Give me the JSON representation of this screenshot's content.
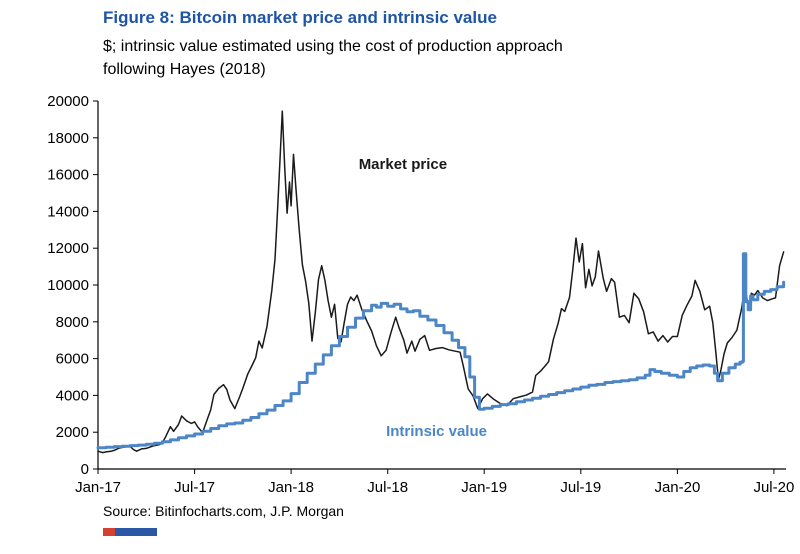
{
  "figure": {
    "title": "Figure 8: Bitcoin market price and intrinsic value",
    "subtitle": "$; intrinsic value estimated using the cost of production approach following Hayes (2018)",
    "source": "Source: Bitinfocharts.com, J.P. Morgan"
  },
  "colors": {
    "title_blue": "#1f55a5",
    "market": "#1a1a1a",
    "intrinsic": "#4d86c6",
    "axis": "#000000",
    "brand_red": "#d6402f",
    "brand_blue": "#2b57a7"
  },
  "chart_data": {
    "type": "line",
    "title": "Figure 8: Bitcoin market price and intrinsic value",
    "ylabel": "$",
    "xlabel": "",
    "grid": false,
    "legend_position": "inline-annotations",
    "xlim": [
      0,
      42.75
    ],
    "ylim": [
      0,
      20000
    ],
    "x_unit": "months since Jan-2017",
    "y_ticks": [
      0,
      2000,
      4000,
      6000,
      8000,
      10000,
      12000,
      14000,
      16000,
      18000,
      20000
    ],
    "x_ticks": [
      {
        "m": 0,
        "label": "Jan-17"
      },
      {
        "m": 6,
        "label": "Jul-17"
      },
      {
        "m": 12,
        "label": "Jan-18"
      },
      {
        "m": 18,
        "label": "Jul-18"
      },
      {
        "m": 24,
        "label": "Jan-19"
      },
      {
        "m": 30,
        "label": "Jul-19"
      },
      {
        "m": 36,
        "label": "Jan-20"
      },
      {
        "m": 42,
        "label": "Jul-20"
      }
    ],
    "annotations": [
      {
        "text": "Market price",
        "x": 16.2,
        "y": 16300,
        "color": "#1a1a1a"
      },
      {
        "text": "Intrinsic value",
        "x": 17.9,
        "y": 1800,
        "color": "#4d86c6"
      }
    ],
    "series": [
      {
        "name": "Market price",
        "color": "#1a1a1a",
        "width": 1.5,
        "step": false,
        "points": [
          [
            0,
            970
          ],
          [
            0.3,
            890
          ],
          [
            0.5,
            930
          ],
          [
            0.8,
            960
          ],
          [
            1,
            1010
          ],
          [
            1.3,
            1130
          ],
          [
            1.6,
            1190
          ],
          [
            2,
            1230
          ],
          [
            2.2,
            1060
          ],
          [
            2.4,
            970
          ],
          [
            2.7,
            1090
          ],
          [
            3,
            1120
          ],
          [
            3.4,
            1250
          ],
          [
            3.8,
            1320
          ],
          [
            4,
            1420
          ],
          [
            4.2,
            1750
          ],
          [
            4.5,
            2300
          ],
          [
            4.7,
            2050
          ],
          [
            5,
            2420
          ],
          [
            5.2,
            2880
          ],
          [
            5.5,
            2620
          ],
          [
            5.8,
            2480
          ],
          [
            6,
            2560
          ],
          [
            6.2,
            2280
          ],
          [
            6.5,
            1980
          ],
          [
            6.8,
            2720
          ],
          [
            7,
            3210
          ],
          [
            7.2,
            4050
          ],
          [
            7.5,
            4380
          ],
          [
            7.8,
            4580
          ],
          [
            8,
            4330
          ],
          [
            8.2,
            3750
          ],
          [
            8.5,
            3280
          ],
          [
            8.8,
            3920
          ],
          [
            9,
            4380
          ],
          [
            9.3,
            5150
          ],
          [
            9.6,
            5680
          ],
          [
            9.8,
            6050
          ],
          [
            10,
            6950
          ],
          [
            10.2,
            6580
          ],
          [
            10.5,
            7750
          ],
          [
            10.8,
            9700
          ],
          [
            11,
            11400
          ],
          [
            11.15,
            13900
          ],
          [
            11.3,
            16700
          ],
          [
            11.45,
            19450
          ],
          [
            11.6,
            16400
          ],
          [
            11.75,
            13900
          ],
          [
            11.9,
            15600
          ],
          [
            12,
            14300
          ],
          [
            12.15,
            17100
          ],
          [
            12.3,
            15200
          ],
          [
            12.5,
            13000
          ],
          [
            12.7,
            11100
          ],
          [
            12.9,
            10200
          ],
          [
            13.1,
            9000
          ],
          [
            13.3,
            6950
          ],
          [
            13.5,
            8500
          ],
          [
            13.7,
            10300
          ],
          [
            13.9,
            11050
          ],
          [
            14.1,
            10250
          ],
          [
            14.3,
            9150
          ],
          [
            14.5,
            8250
          ],
          [
            14.7,
            8950
          ],
          [
            14.9,
            7100
          ],
          [
            15.1,
            6900
          ],
          [
            15.3,
            7950
          ],
          [
            15.5,
            8950
          ],
          [
            15.7,
            9350
          ],
          [
            15.9,
            9150
          ],
          [
            16.1,
            9450
          ],
          [
            16.4,
            8650
          ],
          [
            16.7,
            8050
          ],
          [
            17,
            7500
          ],
          [
            17.3,
            6700
          ],
          [
            17.6,
            6150
          ],
          [
            17.9,
            6450
          ],
          [
            18.2,
            7400
          ],
          [
            18.5,
            8250
          ],
          [
            18.7,
            7700
          ],
          [
            19,
            7000
          ],
          [
            19.2,
            6300
          ],
          [
            19.5,
            6950
          ],
          [
            19.7,
            6400
          ],
          [
            20,
            7050
          ],
          [
            20.3,
            7250
          ],
          [
            20.6,
            6450
          ],
          [
            21,
            6550
          ],
          [
            21.4,
            6600
          ],
          [
            21.8,
            6480
          ],
          [
            22.2,
            6400
          ],
          [
            22.5,
            6350
          ],
          [
            22.7,
            5600
          ],
          [
            23,
            4350
          ],
          [
            23.3,
            3980
          ],
          [
            23.6,
            3280
          ],
          [
            23.9,
            3820
          ],
          [
            24.2,
            4080
          ],
          [
            24.6,
            3780
          ],
          [
            25,
            3560
          ],
          [
            25.4,
            3440
          ],
          [
            25.8,
            3820
          ],
          [
            26.2,
            3920
          ],
          [
            26.6,
            4010
          ],
          [
            27,
            4180
          ],
          [
            27.2,
            5080
          ],
          [
            27.5,
            5320
          ],
          [
            27.8,
            5620
          ],
          [
            28,
            5830
          ],
          [
            28.3,
            7050
          ],
          [
            28.6,
            7950
          ],
          [
            28.8,
            8720
          ],
          [
            29,
            8560
          ],
          [
            29.3,
            9320
          ],
          [
            29.5,
            10850
          ],
          [
            29.7,
            12550
          ],
          [
            29.9,
            11250
          ],
          [
            30.1,
            12250
          ],
          [
            30.3,
            9850
          ],
          [
            30.5,
            10850
          ],
          [
            30.7,
            9950
          ],
          [
            30.9,
            10450
          ],
          [
            31.1,
            11850
          ],
          [
            31.4,
            10350
          ],
          [
            31.6,
            9650
          ],
          [
            31.9,
            10350
          ],
          [
            32.1,
            10150
          ],
          [
            32.4,
            8250
          ],
          [
            32.7,
            8350
          ],
          [
            33,
            7950
          ],
          [
            33.3,
            9550
          ],
          [
            33.6,
            9250
          ],
          [
            33.9,
            8550
          ],
          [
            34.2,
            7350
          ],
          [
            34.5,
            7450
          ],
          [
            34.8,
            6950
          ],
          [
            35.1,
            7250
          ],
          [
            35.4,
            6900
          ],
          [
            35.7,
            7200
          ],
          [
            36,
            7200
          ],
          [
            36.3,
            8350
          ],
          [
            36.6,
            8900
          ],
          [
            36.9,
            9400
          ],
          [
            37.1,
            10250
          ],
          [
            37.4,
            9650
          ],
          [
            37.7,
            8650
          ],
          [
            38,
            8850
          ],
          [
            38.2,
            7950
          ],
          [
            38.4,
            6250
          ],
          [
            38.55,
            4850
          ],
          [
            38.7,
            5350
          ],
          [
            38.9,
            6250
          ],
          [
            39.1,
            6850
          ],
          [
            39.4,
            7150
          ],
          [
            39.7,
            7550
          ],
          [
            40,
            8750
          ],
          [
            40.2,
            9950
          ],
          [
            40.4,
            8750
          ],
          [
            40.6,
            9550
          ],
          [
            40.8,
            9450
          ],
          [
            41,
            9700
          ],
          [
            41.3,
            9300
          ],
          [
            41.6,
            9150
          ],
          [
            41.9,
            9250
          ],
          [
            42.1,
            9300
          ],
          [
            42.35,
            11050
          ],
          [
            42.6,
            11800
          ]
        ]
      },
      {
        "name": "Intrinsic value",
        "color": "#4d86c6",
        "width": 3,
        "step": true,
        "points": [
          [
            0,
            1150
          ],
          [
            0.5,
            1180
          ],
          [
            1,
            1220
          ],
          [
            1.5,
            1240
          ],
          [
            2,
            1270
          ],
          [
            2.5,
            1300
          ],
          [
            3,
            1340
          ],
          [
            3.5,
            1400
          ],
          [
            4,
            1480
          ],
          [
            4.5,
            1580
          ],
          [
            5,
            1700
          ],
          [
            5.5,
            1800
          ],
          [
            6,
            1900
          ],
          [
            6.5,
            2050
          ],
          [
            7,
            2200
          ],
          [
            7.5,
            2350
          ],
          [
            8,
            2450
          ],
          [
            8.5,
            2500
          ],
          [
            9,
            2650
          ],
          [
            9.5,
            2800
          ],
          [
            10,
            3000
          ],
          [
            10.5,
            3200
          ],
          [
            11,
            3450
          ],
          [
            11.5,
            3700
          ],
          [
            12,
            4100
          ],
          [
            12.5,
            4700
          ],
          [
            13,
            5200
          ],
          [
            13.5,
            5700
          ],
          [
            14,
            6200
          ],
          [
            14.5,
            6700
          ],
          [
            15,
            7200
          ],
          [
            15.5,
            7700
          ],
          [
            16,
            8200
          ],
          [
            16.5,
            8600
          ],
          [
            17,
            8900
          ],
          [
            17.3,
            8800
          ],
          [
            17.6,
            9000
          ],
          [
            18,
            8850
          ],
          [
            18.4,
            8950
          ],
          [
            18.8,
            8700
          ],
          [
            19.2,
            8550
          ],
          [
            19.6,
            8600
          ],
          [
            20,
            8300
          ],
          [
            20.5,
            8100
          ],
          [
            21,
            7800
          ],
          [
            21.5,
            7400
          ],
          [
            22,
            7000
          ],
          [
            22.4,
            6600
          ],
          [
            22.8,
            6100
          ],
          [
            23.1,
            5000
          ],
          [
            23.4,
            3900
          ],
          [
            23.7,
            3250
          ],
          [
            24,
            3300
          ],
          [
            24.5,
            3400
          ],
          [
            25,
            3500
          ],
          [
            25.5,
            3550
          ],
          [
            26,
            3650
          ],
          [
            26.5,
            3750
          ],
          [
            27,
            3850
          ],
          [
            27.5,
            3950
          ],
          [
            28,
            4050
          ],
          [
            28.5,
            4150
          ],
          [
            29,
            4250
          ],
          [
            29.5,
            4350
          ],
          [
            30,
            4450
          ],
          [
            30.5,
            4550
          ],
          [
            31,
            4600
          ],
          [
            31.5,
            4700
          ],
          [
            32,
            4750
          ],
          [
            32.5,
            4800
          ],
          [
            33,
            4850
          ],
          [
            33.5,
            4950
          ],
          [
            34,
            5100
          ],
          [
            34.3,
            5400
          ],
          [
            34.6,
            5300
          ],
          [
            35,
            5200
          ],
          [
            35.5,
            5100
          ],
          [
            36,
            5000
          ],
          [
            36.4,
            5300
          ],
          [
            36.8,
            5500
          ],
          [
            37.2,
            5600
          ],
          [
            37.6,
            5650
          ],
          [
            38,
            5600
          ],
          [
            38.3,
            5200
          ],
          [
            38.5,
            4800
          ],
          [
            38.8,
            5200
          ],
          [
            39.2,
            5500
          ],
          [
            39.6,
            5700
          ],
          [
            39.9,
            5800
          ],
          [
            40.05,
            5850
          ],
          [
            40.1,
            11700
          ],
          [
            40.25,
            9100
          ],
          [
            40.4,
            8650
          ],
          [
            40.55,
            9400
          ],
          [
            40.7,
            9200
          ],
          [
            41,
            9500
          ],
          [
            41.4,
            9650
          ],
          [
            41.8,
            9750
          ],
          [
            42.2,
            9900
          ],
          [
            42.6,
            10150
          ]
        ]
      }
    ]
  }
}
